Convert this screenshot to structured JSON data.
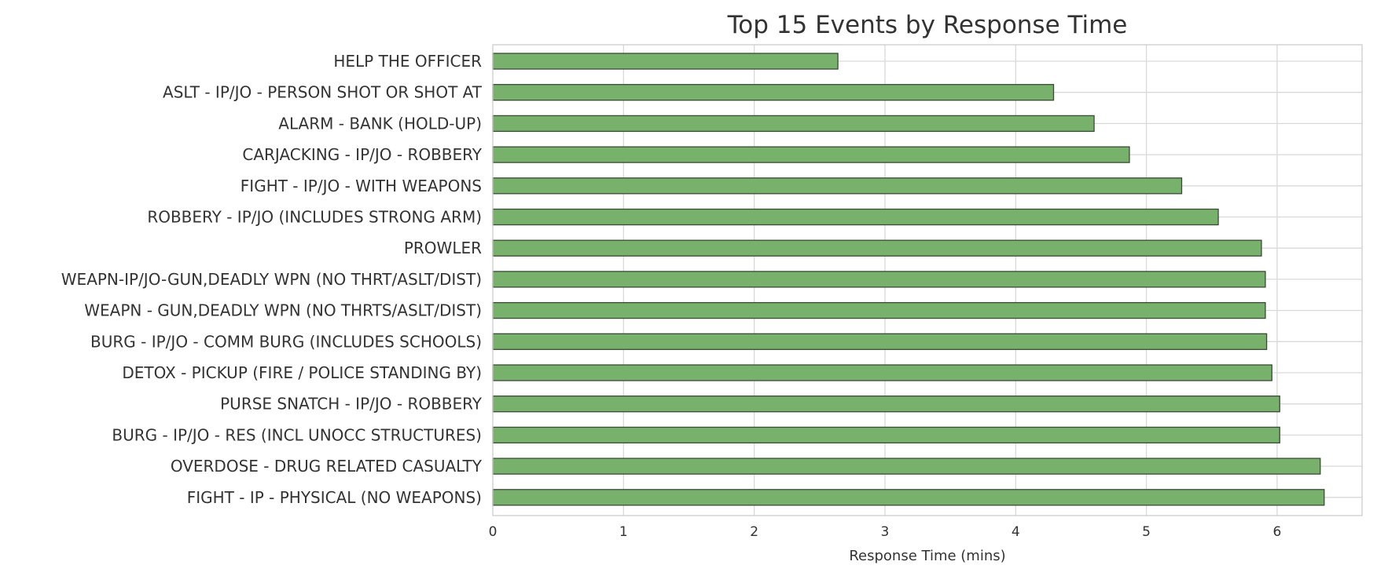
{
  "chart_data": {
    "type": "bar",
    "orientation": "horizontal",
    "title": "Top 15 Events by Response Time",
    "xlabel": "Response Time (mins)",
    "ylabel": "",
    "xlim": [
      0,
      6.65
    ],
    "xticks": [
      "0",
      "1",
      "2",
      "3",
      "4",
      "5",
      "6"
    ],
    "grid": true,
    "bar_color": "#78b16c",
    "bar_edge_color": "#3a4a36",
    "categories": [
      "HELP THE OFFICER",
      "ASLT - IP/JO - PERSON SHOT OR SHOT AT",
      "ALARM - BANK (HOLD-UP)",
      "CARJACKING - IP/JO - ROBBERY",
      "FIGHT - IP/JO - WITH WEAPONS",
      "ROBBERY - IP/JO (INCLUDES STRONG ARM)",
      "PROWLER",
      "WEAPN-IP/JO-GUN,DEADLY WPN (NO THRT/ASLT/DIST)",
      "WEAPN - GUN,DEADLY WPN (NO THRTS/ASLT/DIST)",
      "BURG - IP/JO - COMM BURG (INCLUDES SCHOOLS)",
      "DETOX - PICKUP (FIRE / POLICE STANDING BY)",
      "PURSE SNATCH - IP/JO - ROBBERY",
      "BURG - IP/JO - RES (INCL UNOCC STRUCTURES)",
      "OVERDOSE - DRUG RELATED CASUALTY",
      "FIGHT - IP - PHYSICAL (NO WEAPONS)"
    ],
    "values": [
      2.64,
      4.29,
      4.6,
      4.87,
      5.27,
      5.55,
      5.88,
      5.91,
      5.91,
      5.92,
      5.96,
      6.02,
      6.02,
      6.33,
      6.36
    ]
  }
}
